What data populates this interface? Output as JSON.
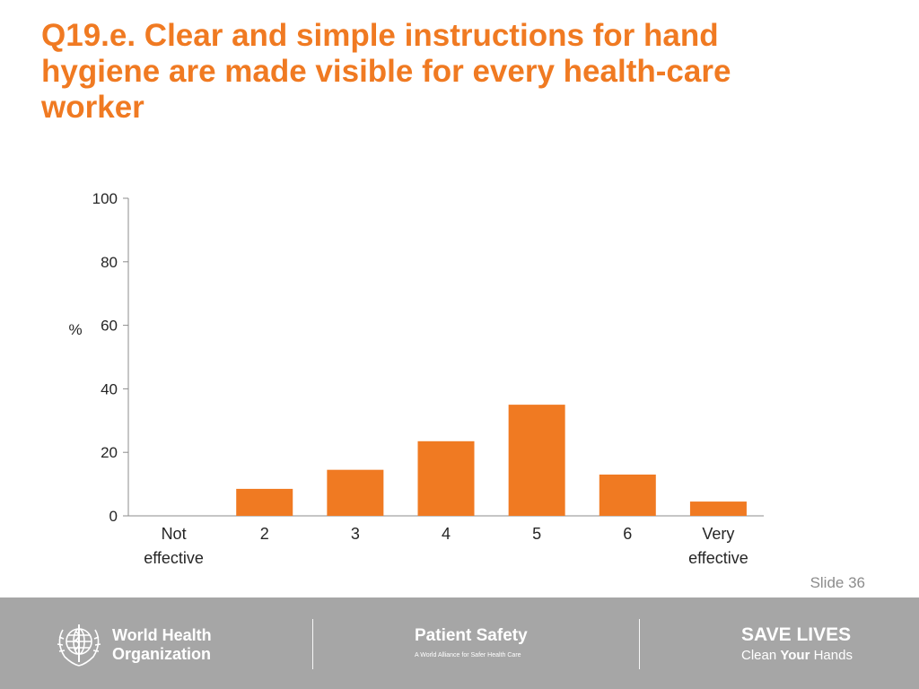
{
  "slide": {
    "title_lines": [
      "Q19.e. Clear and simple instructions for hand",
      "hygiene are made visible for every health-care",
      "worker"
    ],
    "slide_number": "Slide 36",
    "accent_color": "#f07a22"
  },
  "chart_data": {
    "type": "bar",
    "title": "Q19.e. Clear and simple instructions for hand hygiene are made visible for every health-care worker",
    "categories": [
      "Not effective",
      "2",
      "3",
      "4",
      "5",
      "6",
      "Very effective"
    ],
    "category_lines": [
      [
        "Not",
        "effective"
      ],
      [
        "2"
      ],
      [
        "3"
      ],
      [
        "4"
      ],
      [
        "5"
      ],
      [
        "6"
      ],
      [
        "Very",
        "effective"
      ]
    ],
    "values": [
      0,
      8.5,
      14.5,
      23.5,
      35,
      13,
      4.5
    ],
    "ylabel": "%",
    "ylim": [
      0,
      100
    ],
    "yticks": [
      0,
      20,
      40,
      60,
      80,
      100
    ],
    "grid": false,
    "legend": false,
    "bar_color": "#f07a22"
  },
  "footer": {
    "background_color": "#a6a6a6",
    "who": {
      "logo_icon": "who-emblem-icon",
      "line1": "World Health",
      "line2": "Organization"
    },
    "patient_safety": {
      "title": "Patient Safety",
      "subtitle": "A World Alliance for Safer Health Care"
    },
    "campaign": {
      "title": "SAVE LIVES",
      "sub_before": "Clean ",
      "sub_bold": "Your",
      "sub_after": " Hands"
    }
  }
}
